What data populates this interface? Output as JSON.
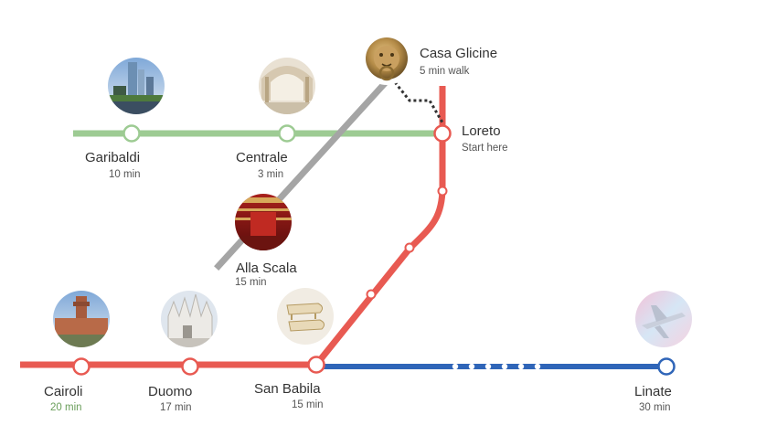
{
  "colors": {
    "red_line": "#e85a52",
    "green_line": "#9dcb93",
    "blue_line": "#2f65b8",
    "gray_line": "#a5a5a5",
    "walk_path": "#333333",
    "highlight_time": "#6a9e5a"
  },
  "stops": {
    "casa_glicine": {
      "name": "Casa Glicine",
      "sub": "5 min walk",
      "photo": "lion-door-knocker-photo"
    },
    "loreto": {
      "name": "Loreto",
      "sub": "Start here"
    },
    "garibaldi": {
      "name": "Garibaldi",
      "sub": "10 min",
      "photo": "porta-nuova-towers-photo"
    },
    "centrale": {
      "name": "Centrale",
      "sub": "3 min",
      "photo": "centrale-station-hall-photo"
    },
    "alla_scala": {
      "name": "Alla Scala",
      "sub": "15 min",
      "photo": "la-scala-theater-photo"
    },
    "cairoli": {
      "name": "Cairoli",
      "sub": "20 min",
      "photo": "sforza-castle-photo"
    },
    "duomo": {
      "name": "Duomo",
      "sub": "17 min",
      "photo": "duomo-cathedral-photo"
    },
    "san_babila": {
      "name": "San Babila",
      "sub": "15 min",
      "photo": "grand-pianos-photo"
    },
    "linate": {
      "name": "Linate",
      "sub": "30 min",
      "photo": "airplane-photo"
    }
  }
}
